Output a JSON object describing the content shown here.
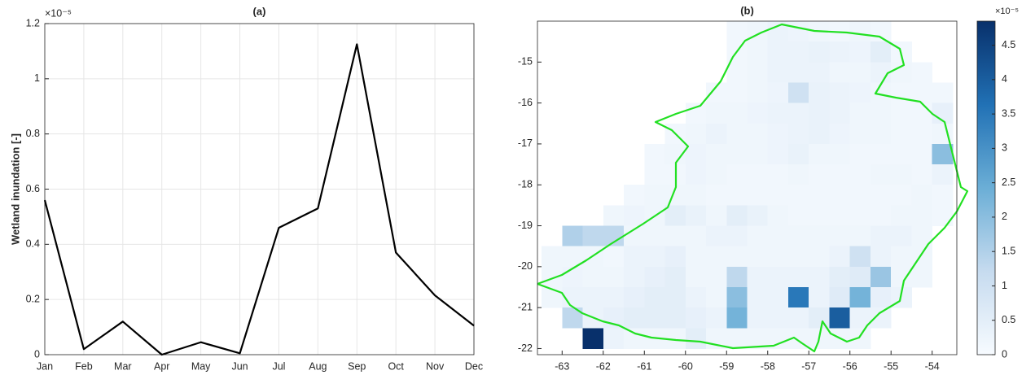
{
  "chart_data": [
    {
      "type": "line",
      "title": "(a)",
      "y_label": "Wetland inundation [-]",
      "y_exponent_label": "×10⁻⁵",
      "categories": [
        "Jan",
        "Feb",
        "Mar",
        "Apr",
        "May",
        "Jun",
        "Jul",
        "Aug",
        "Sep",
        "Oct",
        "Nov",
        "Dec"
      ],
      "values": [
        0.56,
        0.02,
        0.12,
        0.0,
        0.045,
        0.005,
        0.46,
        0.53,
        1.125,
        0.37,
        0.215,
        0.105
      ],
      "color": "#000000",
      "ylim": [
        0,
        1.2
      ],
      "yticks": [
        0,
        0.2,
        0.4,
        0.6,
        0.8,
        1,
        1.2
      ],
      "grid": true
    },
    {
      "type": "heatmap",
      "title": "(b)",
      "colorbar_exponent_label": "×10⁻⁵",
      "x": [
        -63.25,
        -62.75,
        -62.25,
        -61.75,
        -61.25,
        -60.75,
        -60.25,
        -59.75,
        -59.25,
        -58.75,
        -58.25,
        -57.75,
        -57.25,
        -56.75,
        -56.25,
        -55.75,
        -55.25,
        -54.75,
        -54.25,
        -53.75
      ],
      "y": [
        -14.25,
        -14.75,
        -15.25,
        -15.75,
        -16.25,
        -16.75,
        -17.25,
        -17.75,
        -18.25,
        -18.75,
        -19.25,
        -19.75,
        -20.25,
        -20.75,
        -21.25,
        -21.75
      ],
      "z": [
        [
          null,
          null,
          null,
          null,
          null,
          null,
          null,
          null,
          null,
          0.15,
          0.2,
          0.3,
          0.25,
          0.2,
          0.15,
          0.2,
          0.15,
          null,
          null,
          null
        ],
        [
          null,
          null,
          null,
          null,
          null,
          null,
          null,
          null,
          null,
          0.15,
          0.2,
          0.3,
          0.3,
          0.35,
          0.3,
          0.25,
          0.5,
          0.15,
          null,
          null
        ],
        [
          null,
          null,
          null,
          null,
          null,
          null,
          null,
          null,
          null,
          0.15,
          0.2,
          0.3,
          0.3,
          0.3,
          0.2,
          0.2,
          0.3,
          0.2,
          0.15,
          null
        ],
        [
          null,
          null,
          null,
          null,
          null,
          null,
          null,
          null,
          0.15,
          0.15,
          0.2,
          0.25,
          1.0,
          0.35,
          0.3,
          0.25,
          0.2,
          0.15,
          0.15,
          0.15
        ],
        [
          null,
          null,
          null,
          null,
          null,
          null,
          null,
          0.15,
          0.2,
          0.2,
          0.25,
          0.3,
          0.3,
          0.35,
          0.3,
          0.2,
          0.2,
          0.15,
          0.15,
          0.4
        ],
        [
          null,
          null,
          null,
          null,
          null,
          null,
          0.15,
          0.2,
          0.3,
          0.2,
          0.2,
          0.25,
          0.3,
          0.35,
          0.25,
          0.2,
          0.2,
          0.15,
          0.15,
          0.2
        ],
        [
          null,
          null,
          null,
          null,
          null,
          0.15,
          0.2,
          0.25,
          0.2,
          0.2,
          0.2,
          0.25,
          0.35,
          0.2,
          0.2,
          0.15,
          0.15,
          0.15,
          0.15,
          2.0
        ],
        [
          null,
          null,
          null,
          null,
          null,
          0.15,
          0.15,
          0.25,
          0.2,
          0.15,
          0.15,
          0.15,
          0.2,
          0.15,
          0.15,
          0.15,
          0.2,
          0.2,
          0.15,
          0.3
        ],
        [
          null,
          null,
          null,
          null,
          0.15,
          0.2,
          0.2,
          0.2,
          0.15,
          0.15,
          0.15,
          0.15,
          0.15,
          0.15,
          0.15,
          0.15,
          0.15,
          0.15,
          0.2,
          0.15
        ],
        [
          null,
          null,
          null,
          0.2,
          0.25,
          0.2,
          0.5,
          0.35,
          0.2,
          0.5,
          0.35,
          0.2,
          0.15,
          0.15,
          0.15,
          0.15,
          0.15,
          0.2,
          0.2,
          0.15
        ],
        [
          null,
          1.5,
          1.3,
          1.3,
          0.2,
          0.2,
          0.2,
          0.2,
          0.3,
          0.3,
          0.2,
          0.2,
          0.2,
          0.2,
          0.2,
          0.2,
          0.3,
          0.3,
          0.2,
          null
        ],
        [
          0.2,
          0.2,
          0.2,
          0.15,
          0.3,
          0.3,
          0.4,
          0.2,
          0.2,
          0.2,
          0.2,
          0.2,
          0.2,
          0.2,
          0.3,
          1.0,
          0.3,
          0.2,
          0.2,
          null
        ],
        [
          0.2,
          0.25,
          0.2,
          0.2,
          0.3,
          0.4,
          0.5,
          0.2,
          0.2,
          1.3,
          0.3,
          0.3,
          0.3,
          0.3,
          0.5,
          0.6,
          1.8,
          0.2,
          0.2,
          null
        ],
        [
          0.2,
          0.3,
          0.3,
          0.3,
          0.4,
          0.5,
          0.5,
          0.3,
          0.2,
          2.0,
          0.3,
          0.3,
          3.5,
          0.3,
          0.6,
          2.3,
          0.4,
          0.3,
          null,
          null
        ],
        [
          null,
          1.3,
          0.3,
          0.4,
          0.5,
          0.5,
          0.5,
          0.4,
          0.3,
          2.3,
          0.3,
          0.3,
          0.3,
          0.5,
          4.0,
          0.3,
          0.3,
          null,
          null,
          null
        ],
        [
          null,
          null,
          4.85,
          0.3,
          0.2,
          0.2,
          0.2,
          0.5,
          0.2,
          0.2,
          0.2,
          0.2,
          0.2,
          0.2,
          0.2,
          0.2,
          null,
          null,
          null,
          null
        ]
      ],
      "xlim": [
        -63.6,
        -53.4
      ],
      "xticks": [
        -63,
        -62,
        -61,
        -60,
        -59,
        -58,
        -57,
        -56,
        -55,
        -54
      ],
      "ylim": [
        -22.15,
        -14.0
      ],
      "yticks": [
        -15,
        -16,
        -17,
        -18,
        -19,
        -20,
        -21,
        -22
      ],
      "clim": [
        0,
        4.85
      ],
      "cticks": [
        0,
        0.5,
        1,
        1.5,
        2,
        2.5,
        3,
        3.5,
        4,
        4.5
      ],
      "colormap": [
        "#f7fbff",
        "#c6dbef",
        "#6baed6",
        "#2171b5",
        "#08306b"
      ],
      "grid": false
    }
  ]
}
